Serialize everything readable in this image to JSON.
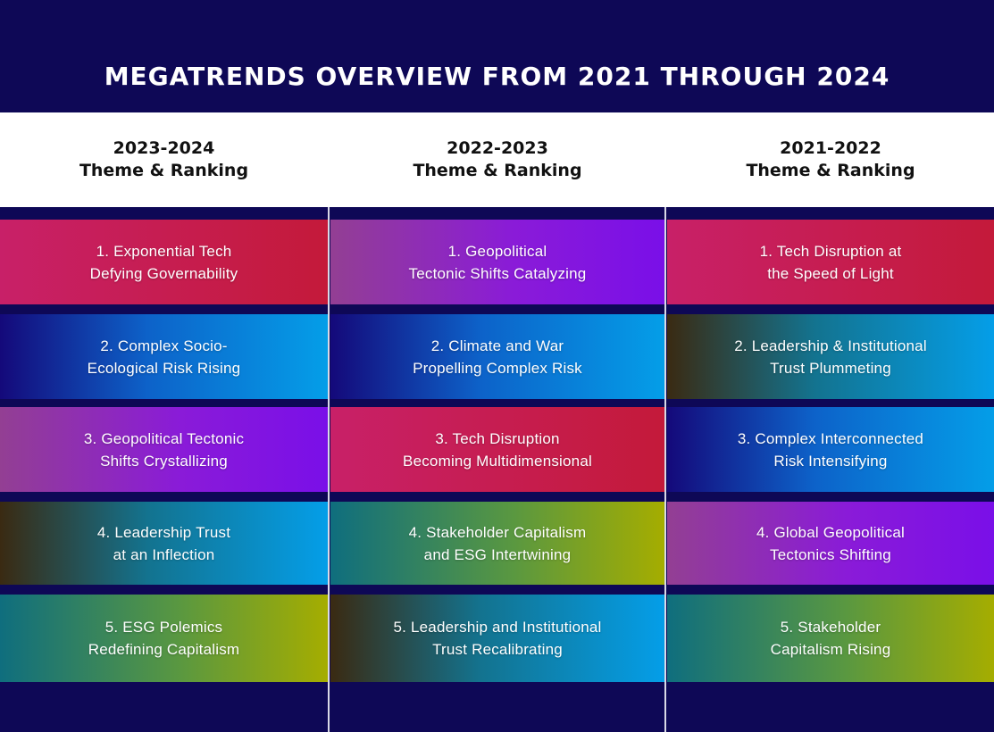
{
  "title": "MEGATRENDS OVERVIEW FROM 2021 THROUGH 2024",
  "columns": [
    {
      "year": "2023-2024",
      "subtitle": "Theme & Ranking",
      "items": [
        "1. Exponential Tech\nDefying Governability",
        "2. Complex Socio-\nEcological Risk Rising",
        "3. Geopolitical Tectonic\nShifts Crystallizing",
        "4. Leadership Trust\nat an Inflection",
        "5. ESG Polemics\nRedefining Capitalism"
      ]
    },
    {
      "year": "2022-2023",
      "subtitle": "Theme & Ranking",
      "items": [
        "1. Geopolitical\nTectonic Shifts Catalyzing",
        "2. Climate and War\nPropelling Complex Risk",
        "3. Tech Disruption\nBecoming Multidimensional",
        "4. Stakeholder Capitalism\nand ESG Intertwining",
        "5. Leadership and Institutional\nTrust Recalibrating"
      ]
    },
    {
      "year": "2021-2022",
      "subtitle": "Theme & Ranking",
      "items": [
        "1. Tech Disruption at\nthe Speed of Light",
        "2. Leadership & Institutional\nTrust Plummeting",
        "3. Complex Interconnected\nRisk Intensifying",
        "4. Global Geopolitical\nTectonics Shifting",
        "5. Stakeholder\nCapitalism Rising"
      ]
    }
  ],
  "colors": {
    "background": "#0e0856",
    "header_band": "#ffffff",
    "theme_tech": "#c41a3a",
    "theme_risk": "#049ee8",
    "theme_geopolitics": "#7a0fe8",
    "theme_trust": "#13738f",
    "theme_esg": "#a5ad00"
  }
}
